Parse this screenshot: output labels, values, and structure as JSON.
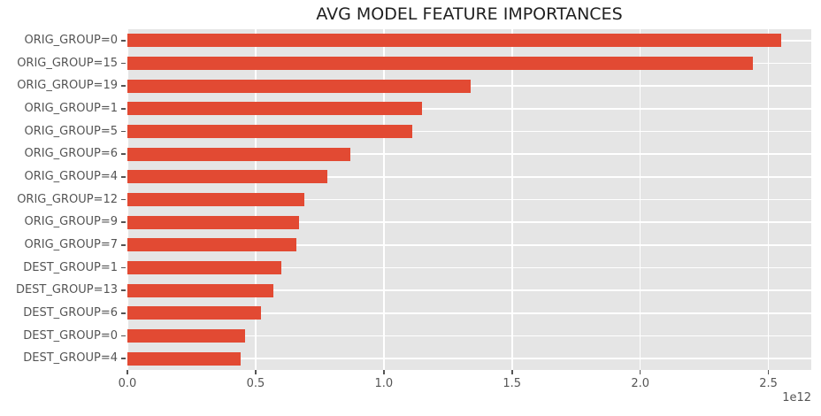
{
  "colors": {
    "bar": "#e24a33",
    "plot_background": "#e5e5e5",
    "grid": "#ffffff",
    "tick": "#555555",
    "title_text": "#1f1f1f"
  },
  "chart_data": {
    "type": "bar",
    "orientation": "horizontal",
    "title": "AVG MODEL FEATURE IMPORTANCES",
    "xlabel": "",
    "ylabel": "",
    "grid": true,
    "legend": false,
    "offset_label": "1e12",
    "xlim": [
      0,
      2667000000000.0
    ],
    "categories": [
      "ORIG_GROUP=0",
      "ORIG_GROUP=15",
      "ORIG_GROUP=19",
      "ORIG_GROUP=1",
      "ORIG_GROUP=5",
      "ORIG_GROUP=6",
      "ORIG_GROUP=4",
      "ORIG_GROUP=12",
      "ORIG_GROUP=9",
      "ORIG_GROUP=7",
      "DEST_GROUP=1",
      "DEST_GROUP=13",
      "DEST_GROUP=6",
      "DEST_GROUP=0",
      "DEST_GROUP=4"
    ],
    "values": [
      2550000000000.0,
      2440000000000.0,
      1340000000000.0,
      1150000000000.0,
      1110000000000.0,
      870000000000.0,
      780000000000.0,
      690000000000.0,
      670000000000.0,
      660000000000.0,
      600000000000.0,
      570000000000.0,
      520000000000.0,
      460000000000.0,
      440000000000.0
    ],
    "x_tick_values": [
      0,
      500000000000.0,
      1000000000000.0,
      1500000000000.0,
      2000000000000.0,
      2500000000000.0
    ],
    "x_tick_labels": [
      "0.0",
      "0.5",
      "1.0",
      "1.5",
      "2.0",
      "2.5"
    ]
  }
}
